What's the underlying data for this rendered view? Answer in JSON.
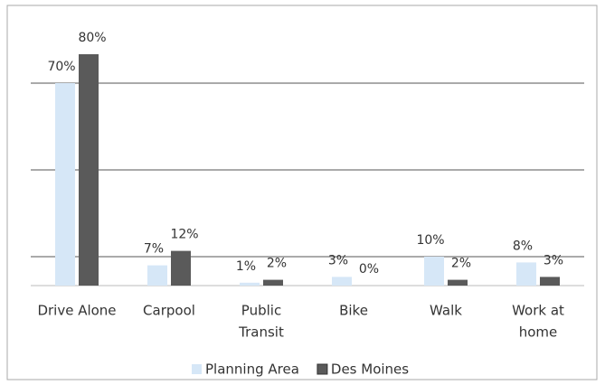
{
  "chart_data": {
    "type": "bar",
    "categories": [
      [
        "Drive Alone"
      ],
      [
        "Carpool"
      ],
      [
        "Public",
        "Transit"
      ],
      [
        "Bike"
      ],
      [
        "Walk"
      ],
      [
        "Work at",
        "home"
      ]
    ],
    "series": [
      {
        "name": "Planning Area",
        "color": "#d6e7f7",
        "values": [
          70,
          7,
          1,
          3,
          10,
          8
        ],
        "value_labels": [
          "70%",
          "7%",
          "1%",
          "3%",
          "10%",
          "8%"
        ]
      },
      {
        "name": "Des Moines",
        "color": "#5a5a5a",
        "values": [
          80,
          12,
          2,
          0,
          2,
          3
        ],
        "value_labels": [
          "80%",
          "12%",
          "2%",
          "0%",
          "2%",
          "3%"
        ]
      }
    ],
    "ylim": [
      0,
      90
    ],
    "yticks": [
      10,
      40,
      70
    ],
    "grid": true,
    "legend": "bottom"
  }
}
